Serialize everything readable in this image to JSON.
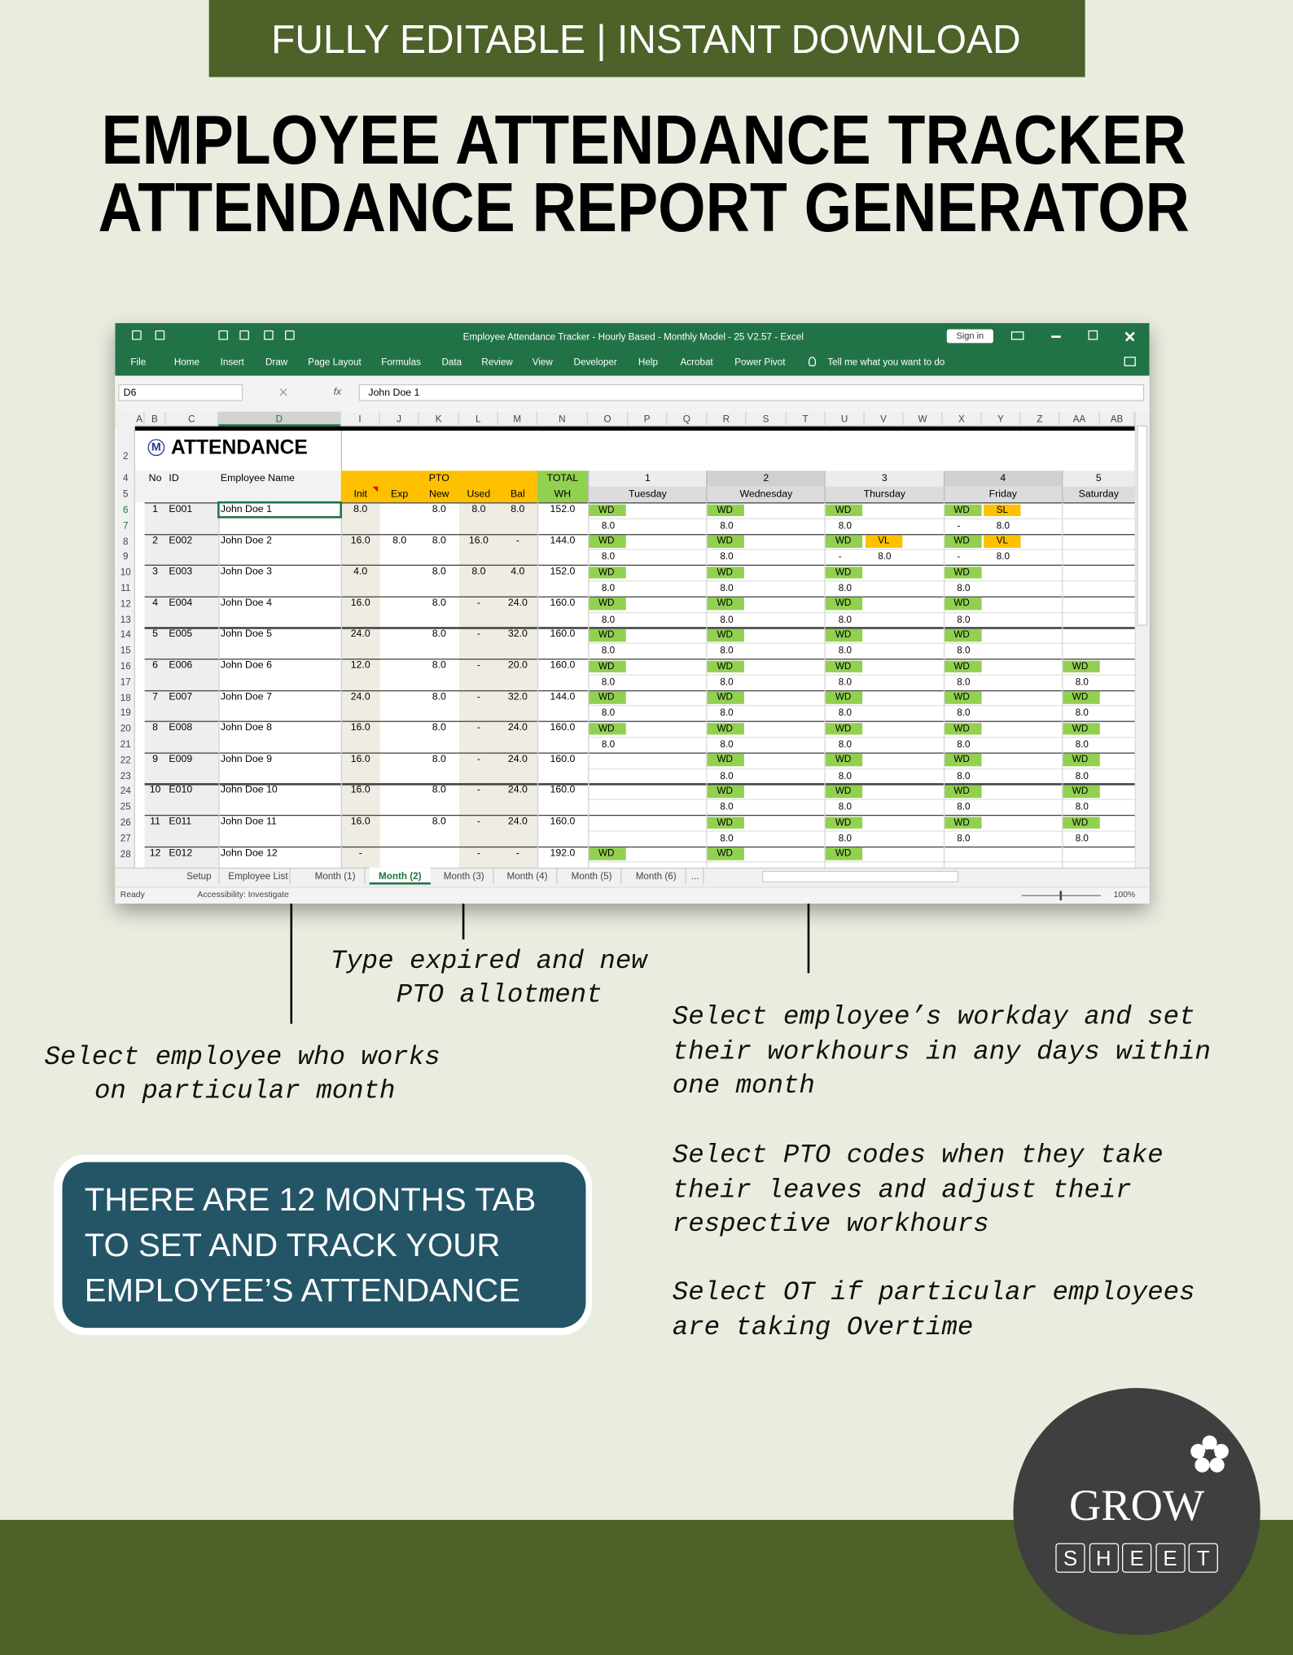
{
  "banner": "FULLY EDITABLE | INSTANT DOWNLOAD",
  "title": [
    "EMPLOYEE ATTENDANCE TRACKER",
    "ATTENDANCE REPORT GENERATOR"
  ],
  "excel": {
    "window_title": "Employee Attendance Tracker - Hourly Based - Monthly Model - 25 V2.57  -  Excel",
    "sign_in": "Sign in",
    "menu": [
      "File",
      "Home",
      "Insert",
      "Draw",
      "Page Layout",
      "Formulas",
      "Data",
      "Review",
      "View",
      "Developer",
      "Help",
      "Acrobat",
      "Power Pivot"
    ],
    "tell_me": "Tell me what you want to do",
    "name_box": "D6",
    "fx": "fx",
    "formula": "John Doe 1",
    "columns": [
      "A",
      "B",
      "C",
      "D",
      "I",
      "J",
      "K",
      "L",
      "M",
      "N",
      "O",
      "P",
      "Q",
      "R",
      "S",
      "T",
      "U",
      "V",
      "W",
      "X",
      "Y",
      "Z",
      "AA",
      "AB"
    ],
    "row_numbers": [
      2,
      4,
      5,
      6,
      7,
      8,
      9,
      10,
      11,
      12,
      13,
      14,
      15,
      16,
      17,
      18,
      19,
      20,
      21,
      22,
      23,
      24,
      25,
      26,
      27,
      28
    ],
    "logo_letter": "M",
    "sheet_title": "ATTENDANCE",
    "headers": {
      "no": "No",
      "id": "ID",
      "name": "Employee Name",
      "pto": "PTO",
      "init": "Init",
      "exp": "Exp",
      "new": "New",
      "used": "Used",
      "bal": "Bal",
      "total": "TOTAL",
      "wh": "WH"
    },
    "days": [
      {
        "day": "1",
        "weekday": "Tuesday"
      },
      {
        "day": "2",
        "weekday": "Wednesday"
      },
      {
        "day": "3",
        "weekday": "Thursday"
      },
      {
        "day": "4",
        "weekday": "Friday"
      },
      {
        "day": "5",
        "weekday": "Saturday"
      }
    ],
    "employees": [
      {
        "no": "1",
        "id": "E001",
        "name": "John Doe 1",
        "init": "8.0",
        "exp": null,
        "new": "8.0",
        "used": "8.0",
        "bal": "8.0",
        "total": "152.0",
        "days": [
          {
            "code": "WD",
            "hours": "8.0"
          },
          {
            "code": "WD",
            "hours": "8.0"
          },
          {
            "code": "WD",
            "hours": "8.0"
          },
          {
            "code": "WD",
            "leave": "SL",
            "hours": "-",
            "leave_hours": "8.0"
          },
          {}
        ]
      },
      {
        "no": "2",
        "id": "E002",
        "name": "John Doe 2",
        "init": "16.0",
        "exp": "8.0",
        "new": "8.0",
        "used": "16.0",
        "bal": "-",
        "total": "144.0",
        "days": [
          {
            "code": "WD",
            "hours": "8.0"
          },
          {
            "code": "WD",
            "hours": "8.0"
          },
          {
            "code": "WD",
            "leave": "VL",
            "hours": "-",
            "leave_hours": "8.0"
          },
          {
            "code": "WD",
            "leave": "VL",
            "hours": "-",
            "leave_hours": "8.0"
          },
          {}
        ]
      },
      {
        "no": "3",
        "id": "E003",
        "name": "John Doe 3",
        "init": "4.0",
        "exp": null,
        "new": "8.0",
        "used": "8.0",
        "bal": "4.0",
        "total": "152.0",
        "days": [
          {
            "code": "WD",
            "hours": "8.0"
          },
          {
            "code": "WD",
            "hours": "8.0"
          },
          {
            "code": "WD",
            "hours": "8.0"
          },
          {
            "code": "WD",
            "hours": "8.0"
          },
          {}
        ]
      },
      {
        "no": "4",
        "id": "E004",
        "name": "John Doe 4",
        "init": "16.0",
        "exp": null,
        "new": "8.0",
        "used": "-",
        "bal": "24.0",
        "total": "160.0",
        "days": [
          {
            "code": "WD",
            "hours": "8.0"
          },
          {
            "code": "WD",
            "hours": "8.0"
          },
          {
            "code": "WD",
            "hours": "8.0"
          },
          {
            "code": "WD",
            "hours": "8.0"
          },
          {}
        ]
      },
      {
        "no": "5",
        "id": "E005",
        "name": "John Doe 5",
        "init": "24.0",
        "exp": null,
        "new": "8.0",
        "used": "-",
        "bal": "32.0",
        "total": "160.0",
        "days": [
          {
            "code": "WD",
            "hours": "8.0"
          },
          {
            "code": "WD",
            "hours": "8.0"
          },
          {
            "code": "WD",
            "hours": "8.0"
          },
          {
            "code": "WD",
            "hours": "8.0"
          },
          {}
        ]
      },
      {
        "no": "6",
        "id": "E006",
        "name": "John Doe 6",
        "init": "12.0",
        "exp": null,
        "new": "8.0",
        "used": "-",
        "bal": "20.0",
        "total": "160.0",
        "days": [
          {
            "code": "WD",
            "hours": "8.0"
          },
          {
            "code": "WD",
            "hours": "8.0"
          },
          {
            "code": "WD",
            "hours": "8.0"
          },
          {
            "code": "WD",
            "hours": "8.0"
          },
          {
            "code": "WD",
            "hours": "8.0"
          }
        ]
      },
      {
        "no": "7",
        "id": "E007",
        "name": "John Doe 7",
        "init": "24.0",
        "exp": null,
        "new": "8.0",
        "used": "-",
        "bal": "32.0",
        "total": "144.0",
        "days": [
          {
            "code": "WD",
            "hours": "8.0"
          },
          {
            "code": "WD",
            "hours": "8.0"
          },
          {
            "code": "WD",
            "hours": "8.0"
          },
          {
            "code": "WD",
            "hours": "8.0"
          },
          {
            "code": "WD",
            "hours": "8.0"
          }
        ]
      },
      {
        "no": "8",
        "id": "E008",
        "name": "John Doe 8",
        "init": "16.0",
        "exp": null,
        "new": "8.0",
        "used": "-",
        "bal": "24.0",
        "total": "160.0",
        "days": [
          {
            "code": "WD",
            "hours": "8.0"
          },
          {
            "code": "WD",
            "hours": "8.0"
          },
          {
            "code": "WD",
            "hours": "8.0"
          },
          {
            "code": "WD",
            "hours": "8.0"
          },
          {
            "code": "WD",
            "hours": "8.0"
          }
        ]
      },
      {
        "no": "9",
        "id": "E009",
        "name": "John Doe 9",
        "init": "16.0",
        "exp": null,
        "new": "8.0",
        "used": "-",
        "bal": "24.0",
        "total": "160.0",
        "days": [
          {},
          {
            "code": "WD",
            "hours": "8.0"
          },
          {
            "code": "WD",
            "hours": "8.0"
          },
          {
            "code": "WD",
            "hours": "8.0"
          },
          {
            "code": "WD",
            "hours": "8.0"
          }
        ]
      },
      {
        "no": "10",
        "id": "E010",
        "name": "John Doe 10",
        "init": "16.0",
        "exp": null,
        "new": "8.0",
        "used": "-",
        "bal": "24.0",
        "total": "160.0",
        "days": [
          {},
          {
            "code": "WD",
            "hours": "8.0"
          },
          {
            "code": "WD",
            "hours": "8.0"
          },
          {
            "code": "WD",
            "hours": "8.0"
          },
          {
            "code": "WD",
            "hours": "8.0"
          }
        ]
      },
      {
        "no": "11",
        "id": "E011",
        "name": "John Doe 11",
        "init": "16.0",
        "exp": null,
        "new": "8.0",
        "used": "-",
        "bal": "24.0",
        "total": "160.0",
        "days": [
          {},
          {
            "code": "WD",
            "hours": "8.0"
          },
          {
            "code": "WD",
            "hours": "8.0"
          },
          {
            "code": "WD",
            "hours": "8.0"
          },
          {
            "code": "WD",
            "hours": "8.0"
          }
        ]
      },
      {
        "no": "12",
        "id": "E012",
        "name": "John Doe 12",
        "init": "-",
        "exp": null,
        "new": null,
        "used": "-",
        "bal": "-",
        "total": "192.0",
        "days": [
          {
            "code": "WD"
          },
          {
            "code": "WD"
          },
          {
            "code": "WD"
          },
          {},
          {}
        ]
      }
    ],
    "tabs": [
      "Setup",
      "Employee List",
      "Month (1)",
      "Month (2)",
      "Month (3)",
      "Month (4)",
      "Month (5)",
      "Month (6)",
      "..."
    ],
    "active_tab": "Month (2)",
    "status": "Ready",
    "accessibility": "Accessibility: Investigate",
    "zoom": "100%"
  },
  "callouts": {
    "pto": [
      "Type expired and new",
      "PTO allotment"
    ],
    "employee": [
      "Select employee who works",
      "on particular month"
    ],
    "notes": [
      [
        "Select employee’s workday and set",
        "their workhours in any days within",
        "one month"
      ],
      [
        "Select PTO codes when they take",
        "their leaves and adjust their",
        "respective workhours"
      ],
      [
        "Select OT if particular employees",
        "are taking Overtime"
      ]
    ]
  },
  "box": [
    "THERE ARE 12 MONTHS TAB",
    "TO SET AND TRACK YOUR",
    "EMPLOYEE’S ATTENDANCE"
  ],
  "logo": {
    "name": "GROW",
    "letters": [
      "S",
      "H",
      "E",
      "E",
      "T"
    ]
  }
}
